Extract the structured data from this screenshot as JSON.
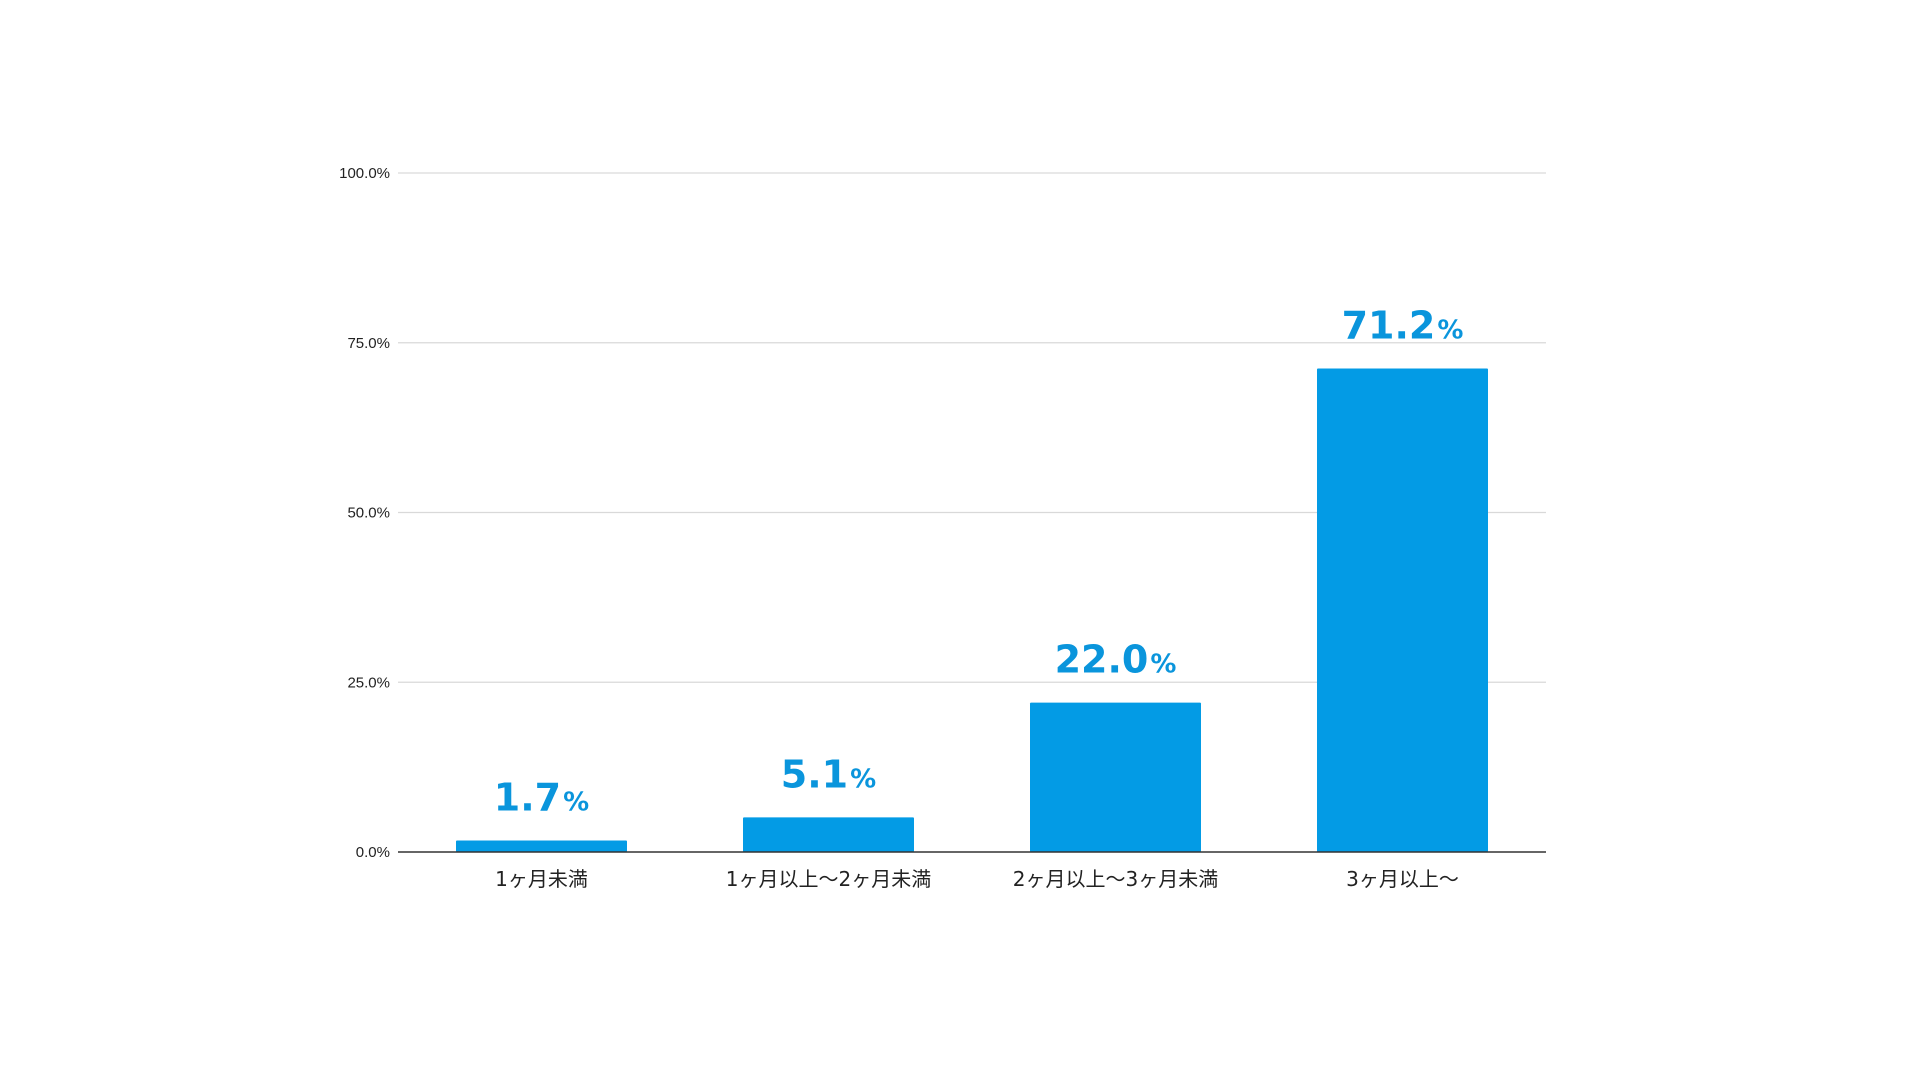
{
  "chart_data": {
    "type": "bar",
    "title": "",
    "xlabel": "",
    "ylabel": "",
    "categories": [
      "1ヶ月未満",
      "1ヶ月以上〜2ヶ月未満",
      "2ヶ月以上〜3ヶ月未満",
      "3ヶ月以上〜"
    ],
    "values": [
      1.7,
      5.1,
      22.0,
      71.2
    ],
    "data_labels": [
      {
        "number": "1.7",
        "unit": "%"
      },
      {
        "number": "5.1",
        "unit": "%"
      },
      {
        "number": "22.0",
        "unit": "%"
      },
      {
        "number": "71.2",
        "unit": "%"
      }
    ],
    "ylim": [
      0,
      100
    ],
    "yticks": [
      0,
      25,
      50,
      75,
      100
    ],
    "ytick_labels": [
      "0.0%",
      "25.0%",
      "50.0%",
      "75.0%",
      "100.0%"
    ],
    "grid": true,
    "legend": "none",
    "colors": {
      "bar": "#039be5",
      "data_label": "#0a95dc",
      "gridline": "#d9d9d9",
      "axis": "#333333"
    }
  }
}
